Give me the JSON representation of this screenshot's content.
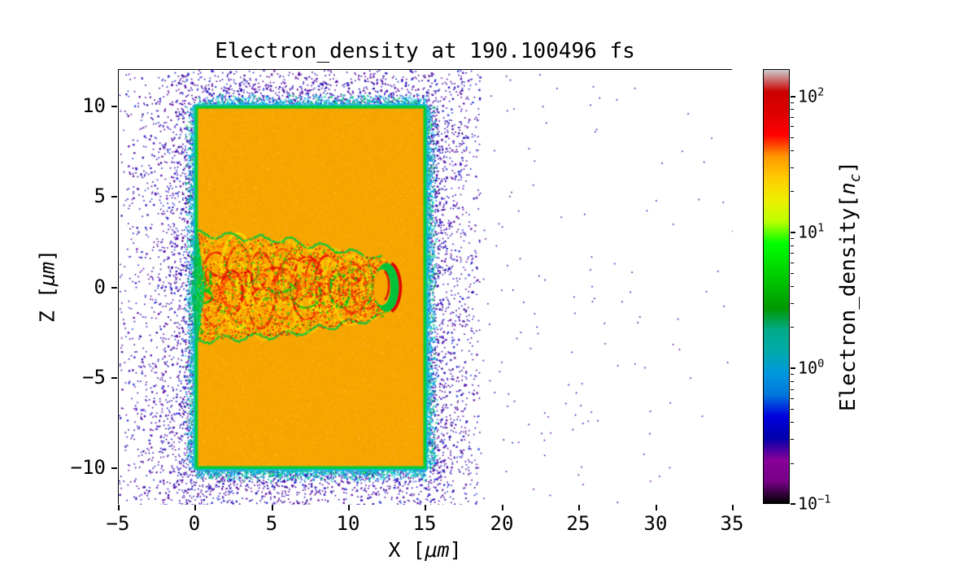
{
  "figure": {
    "title": "Electron_density at 190.100496 fs",
    "xlabel_prefix": "X [",
    "xlabel_unit": "μm",
    "xlabel_suffix": "]",
    "ylabel_prefix": "Z [",
    "ylabel_unit": "μm",
    "ylabel_suffix": "]",
    "cbar_label_prefix": "Electron_density[",
    "cbar_label_symbol": "n",
    "cbar_label_sub": "c",
    "cbar_label_suffix": "]",
    "x_tick_labels": [
      "−5",
      "0",
      "5",
      "10",
      "15",
      "20",
      "25",
      "30",
      "35"
    ],
    "y_tick_labels": [
      "10",
      "5",
      "0",
      "−5",
      "−10"
    ],
    "cbar_tick_labels": [
      {
        "base": "10",
        "exp": "2"
      },
      {
        "base": "10",
        "exp": "1"
      },
      {
        "base": "10",
        "exp": "0"
      },
      {
        "base": "10",
        "exp": "−1"
      }
    ]
  },
  "chart_data": {
    "type": "heatmap",
    "title": "Electron_density at 190.100496 fs",
    "xlabel": "X [μm]",
    "ylabel": "Z [μm]",
    "time_fs": 190.100496,
    "xlim": [
      -5,
      35
    ],
    "ylim": [
      -12,
      12
    ],
    "x_ticks": [
      -5,
      0,
      5,
      10,
      15,
      20,
      25,
      30,
      35
    ],
    "y_ticks": [
      -10,
      -5,
      0,
      5,
      10
    ],
    "grid": false,
    "colorbar": {
      "label": "Electron_density[n_c]",
      "scale": "log",
      "vmin": 0.1,
      "vmax": 158,
      "ticks": [
        0.1,
        1,
        10,
        100
      ],
      "colormap": "nipy_spectral",
      "stops": [
        {
          "pos": 0.0,
          "color": "#000000"
        },
        {
          "pos": 0.05,
          "color": "#770088"
        },
        {
          "pos": 0.1,
          "color": "#880099"
        },
        {
          "pos": 0.15,
          "color": "#0000aa"
        },
        {
          "pos": 0.2,
          "color": "#0000dd"
        },
        {
          "pos": 0.25,
          "color": "#0077dd"
        },
        {
          "pos": 0.3,
          "color": "#0099dd"
        },
        {
          "pos": 0.35,
          "color": "#00aaaa"
        },
        {
          "pos": 0.4,
          "color": "#00aa88"
        },
        {
          "pos": 0.45,
          "color": "#009900"
        },
        {
          "pos": 0.5,
          "color": "#00bb00"
        },
        {
          "pos": 0.55,
          "color": "#00dd00"
        },
        {
          "pos": 0.6,
          "color": "#00ff00"
        },
        {
          "pos": 0.65,
          "color": "#bbff00"
        },
        {
          "pos": 0.7,
          "color": "#eeee00"
        },
        {
          "pos": 0.75,
          "color": "#ffcc00"
        },
        {
          "pos": 0.8,
          "color": "#ff9900"
        },
        {
          "pos": 0.85,
          "color": "#ff0000"
        },
        {
          "pos": 0.9,
          "color": "#dd0000"
        },
        {
          "pos": 0.95,
          "color": "#cc0000"
        },
        {
          "pos": 1.0,
          "color": "#cccccc"
        }
      ]
    },
    "features": {
      "background_density_nc": 0,
      "target_slab": {
        "x": [
          0,
          15
        ],
        "z": [
          -10,
          10
        ],
        "approx_density_nc": 30,
        "color": "#f7a600"
      },
      "slab_rim": {
        "thickness_um": 0.3,
        "approx_density_nc": 8,
        "color": "#00cc3c",
        "outer_color": "#18b6d8"
      },
      "channel": {
        "x": [
          0,
          13.5
        ],
        "z": [
          -3,
          3
        ],
        "peak_density_nc": 100,
        "description": "turbulent laser-drilled channel along z=0 with red/yellow density filaments, green boundaries and a bow-shaped front near x=12.5"
      },
      "noise_halo": {
        "x": [
          -5,
          18.5
        ],
        "z": [
          -12,
          12
        ],
        "approx_density_nc": 0.3,
        "colors": [
          "#3d0b96",
          "#2a10c4"
        ]
      },
      "sparse_noise": {
        "x": [
          18.5,
          35
        ],
        "z": [
          -12,
          12
        ],
        "approx_density_nc": 0.15
      }
    }
  }
}
